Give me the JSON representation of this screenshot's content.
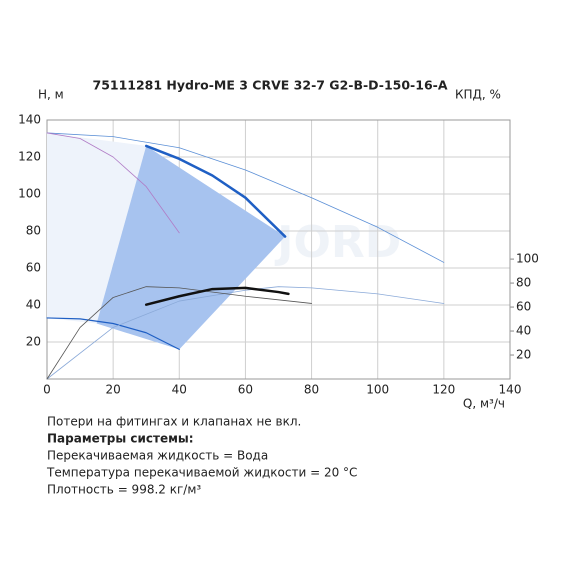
{
  "chart_data": {
    "type": "line",
    "title": "75111281 Hydro-ME 3 CRVE 32-7 G2-B-D-150-16-A",
    "ylabel": "H, м",
    "y2label": "КПД, %",
    "xlabel": "Q, м³/ч",
    "watermark": "VANDJORD",
    "xlim": [
      0,
      140
    ],
    "xticks": [
      0,
      20,
      40,
      60,
      80,
      100,
      120,
      140
    ],
    "ylim": [
      0,
      140
    ],
    "yticks": [
      20,
      40,
      60,
      80,
      100,
      120,
      140
    ],
    "y2lim": [
      0,
      216
    ],
    "y2ticks": [
      20,
      40,
      60,
      80,
      100
    ],
    "grid": true,
    "series": [
      {
        "color": "#eef3fb",
        "fill": true,
        "x": [
          0,
          30,
          15,
          0
        ],
        "values": [
          133,
          126,
          30,
          33
        ]
      },
      {
        "color": "#a7c3ef",
        "fill": true,
        "x": [
          30,
          72,
          40,
          15
        ],
        "values": [
          126,
          77,
          16,
          30
        ]
      },
      {
        "color": "#5b8fd6",
        "width": 0.8,
        "x": [
          0,
          20,
          40,
          60,
          80,
          100,
          120
        ],
        "values": [
          133,
          131,
          125,
          113,
          98,
          82,
          63
        ]
      },
      {
        "color": "#b07cc6",
        "width": 0.8,
        "x": [
          0,
          10,
          20,
          30,
          40
        ],
        "values": [
          133,
          130,
          120,
          104,
          79
        ]
      },
      {
        "color": "#1f5fc4",
        "width": 2.5,
        "x": [
          30,
          40,
          50,
          60,
          72
        ],
        "values": [
          126,
          119,
          110,
          98,
          77
        ]
      },
      {
        "color": "#1f5fc4",
        "width": 1.2,
        "x": [
          0,
          10,
          20,
          30,
          40
        ],
        "values": [
          33,
          32.5,
          30,
          25,
          16
        ]
      },
      {
        "color": "#8aa9d8",
        "width": 0.8,
        "axis": "y2",
        "x": [
          0,
          20,
          40,
          60,
          70,
          80,
          100,
          120
        ],
        "values": [
          0,
          43,
          65,
          74,
          77,
          76,
          71,
          63
        ]
      },
      {
        "color": "#555555",
        "width": 0.8,
        "axis": "y2",
        "x": [
          0,
          10,
          20,
          30,
          40,
          60,
          80
        ],
        "values": [
          0,
          43,
          68,
          77,
          76,
          69,
          63
        ]
      },
      {
        "color": "#111111",
        "width": 2.5,
        "axis": "y2",
        "x": [
          30,
          40,
          50,
          60,
          70,
          73
        ],
        "values": [
          62,
          69,
          75,
          76,
          72.5,
          71
        ]
      }
    ],
    "notes": [
      "Потери на фитингах и клапанах не вкл.",
      "Параметры системы:",
      "Перекачиваемая жидкость = Вода",
      "Температура перекачиваемой жидкости = 20 °C",
      "Плотность = 998.2 кг/м³"
    ]
  }
}
